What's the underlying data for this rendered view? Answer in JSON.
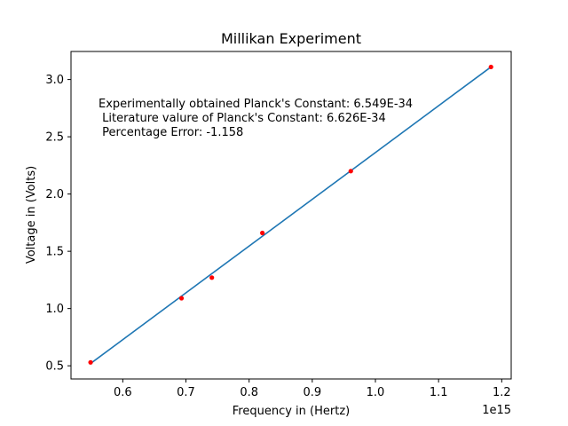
{
  "chart_data": {
    "type": "scatter",
    "title": "Millikan Experiment",
    "xlabel": "Frequency in (Hertz)",
    "ylabel": "Voltage in (Volts)",
    "x_offset_label": "1e15",
    "xlim": [
      0.518,
      1.215
    ],
    "ylim": [
      0.385,
      3.245
    ],
    "x_ticks": [
      0.6,
      0.7,
      0.8,
      0.9,
      1.0,
      1.1,
      1.2
    ],
    "x_tick_labels": [
      "0.6",
      "0.7",
      "0.8",
      "0.9",
      "1.0",
      "1.1",
      "1.2"
    ],
    "y_ticks": [
      0.5,
      1.0,
      1.5,
      2.0,
      2.5,
      3.0
    ],
    "y_tick_labels": [
      "0.5",
      "1.0",
      "1.5",
      "2.0",
      "2.5",
      "3.0"
    ],
    "grid": false,
    "series": [
      {
        "kind": "points",
        "color": "#ff0000",
        "x": [
          0.549,
          0.693,
          0.741,
          0.821,
          0.961,
          1.183
        ],
        "y": [
          0.53,
          1.09,
          1.27,
          1.66,
          2.2,
          3.11
        ]
      },
      {
        "kind": "line",
        "color": "#1f77b4",
        "x": [
          0.549,
          1.183
        ],
        "y": [
          0.52,
          3.11
        ]
      }
    ],
    "annotation": [
      "Experimentally obtained Planck's Constant: 6.549E-34",
      " Literature valure of Planck's Constant: 6.626E-34",
      " Percentage Error: -1.158"
    ]
  }
}
